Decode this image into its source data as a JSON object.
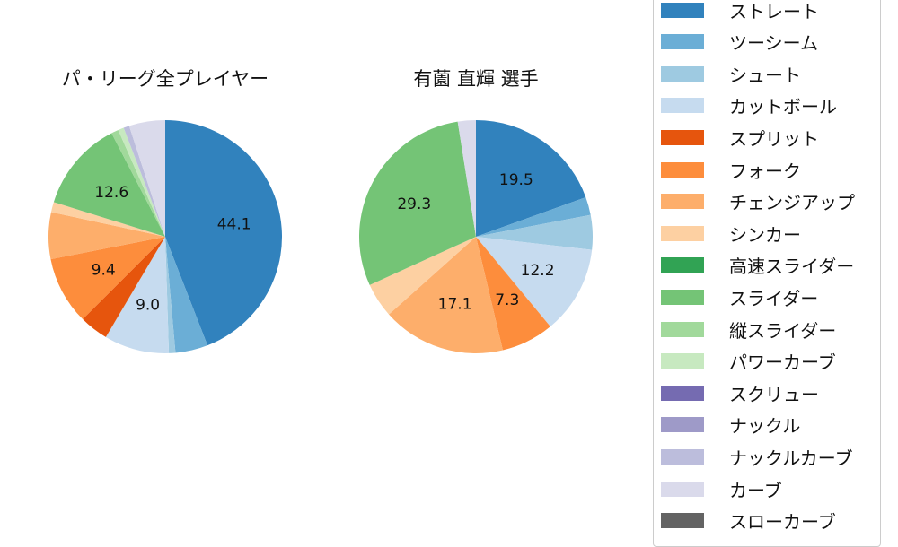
{
  "chart_data": [
    {
      "type": "pie",
      "title": "パ・リーグ全プレイヤー",
      "labels": [
        "ストレート",
        "ツーシーム",
        "シュート",
        "カットボール",
        "スプリット",
        "フォーク",
        "チェンジアップ",
        "シンカー",
        "高速スライダー",
        "スライダー",
        "縦スライダー",
        "パワーカーブ",
        "スクリュー",
        "ナックル",
        "ナックルカーブ",
        "カーブ",
        "スローカーブ"
      ],
      "values": [
        44.1,
        4.5,
        0.9,
        9.0,
        4.0,
        9.4,
        6.5,
        1.4,
        0,
        12.6,
        1.0,
        0.8,
        0,
        0,
        0.8,
        5.0,
        0
      ],
      "data_labels": [
        "44.1",
        "",
        "",
        "9.0",
        "",
        "9.4",
        "",
        "",
        "",
        "12.6",
        "",
        "",
        "",
        "",
        "",
        "",
        ""
      ],
      "start_angle": 90,
      "direction": "clockwise"
    },
    {
      "type": "pie",
      "title": "有薗 直輝  選手",
      "labels": [
        "ストレート",
        "ツーシーム",
        "シュート",
        "カットボール",
        "スプリット",
        "フォーク",
        "チェンジアップ",
        "シンカー",
        "高速スライダー",
        "スライダー",
        "縦スライダー",
        "パワーカーブ",
        "スクリュー",
        "ナックル",
        "ナックルカーブ",
        "カーブ",
        "スローカーブ"
      ],
      "values": [
        19.5,
        2.5,
        4.8,
        12.2,
        0,
        7.3,
        17.1,
        4.8,
        0,
        29.3,
        0,
        0,
        0,
        0,
        0,
        2.5,
        0
      ],
      "data_labels": [
        "19.5",
        "",
        "",
        "12.2",
        "",
        "7.3",
        "17.1",
        "",
        "",
        "29.3",
        "",
        "",
        "",
        "",
        "",
        "",
        ""
      ],
      "start_angle": 90,
      "direction": "clockwise"
    }
  ],
  "legend": {
    "position": "right",
    "items": [
      {
        "label": "ストレート",
        "color": "#3182bd"
      },
      {
        "label": "ツーシーム",
        "color": "#6baed6"
      },
      {
        "label": "シュート",
        "color": "#9ecae1"
      },
      {
        "label": "カットボール",
        "color": "#c6dbef"
      },
      {
        "label": "スプリット",
        "color": "#e6550d"
      },
      {
        "label": "フォーク",
        "color": "#fd8d3c"
      },
      {
        "label": "チェンジアップ",
        "color": "#fdae6b"
      },
      {
        "label": "シンカー",
        "color": "#fdd0a2"
      },
      {
        "label": "高速スライダー",
        "color": "#31a354"
      },
      {
        "label": "スライダー",
        "color": "#74c476"
      },
      {
        "label": "縦スライダー",
        "color": "#a1d99b"
      },
      {
        "label": "パワーカーブ",
        "color": "#c7e9c0"
      },
      {
        "label": "スクリュー",
        "color": "#756bb1"
      },
      {
        "label": "ナックル",
        "color": "#9e9ac8"
      },
      {
        "label": "ナックルカーブ",
        "color": "#bcbddc"
      },
      {
        "label": "カーブ",
        "color": "#dadaeb"
      },
      {
        "label": "スローカーブ",
        "color": "#636363"
      }
    ]
  }
}
